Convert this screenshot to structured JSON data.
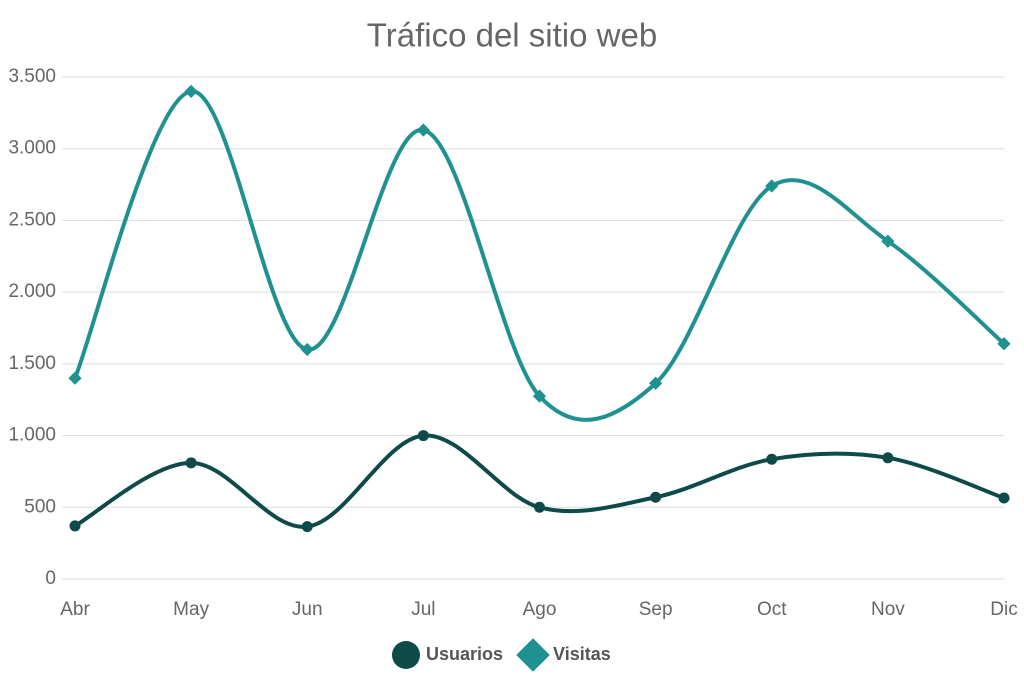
{
  "chart_data": {
    "type": "line",
    "title": "Tráfico del sitio web",
    "categories": [
      "Abr",
      "May",
      "Jun",
      "Jul",
      "Ago",
      "Sep",
      "Oct",
      "Nov",
      "Dic"
    ],
    "series": [
      {
        "name": "Usuarios",
        "color": "#0e4a4a",
        "marker": "circle",
        "values": [
          370,
          810,
          365,
          1000,
          500,
          570,
          835,
          845,
          565
        ]
      },
      {
        "name": "Visitas",
        "color": "#1f9190",
        "marker": "diamond",
        "values": [
          1400,
          3400,
          1600,
          3130,
          1275,
          1365,
          2740,
          2355,
          1640
        ]
      }
    ],
    "ylim": [
      0,
      3500
    ],
    "yticks": [
      0,
      500,
      {
        "value": 1000,
        "label": "1.000"
      },
      {
        "value": 1500,
        "label": "1.500"
      },
      {
        "value": 2000,
        "label": "2.000"
      },
      {
        "value": 2500,
        "label": "2.500"
      },
      {
        "value": 3000,
        "label": "3.000"
      },
      {
        "value": 3500,
        "label": "3.500"
      }
    ],
    "grid": true,
    "smooth": true,
    "legend": "bottom"
  }
}
